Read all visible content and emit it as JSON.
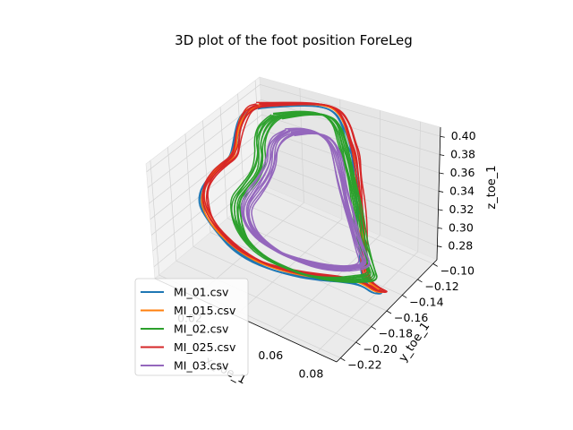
{
  "chart_data": {
    "type": "line",
    "projection": "3d",
    "title": "3D plot of the foot position ForeLeg",
    "xlabel": "x_toe_1",
    "ylabel": "y_toe_1",
    "zlabel": "z_toe_1",
    "xlim": [
      0.0,
      0.09
    ],
    "ylim": [
      -0.225,
      -0.095
    ],
    "zlim": [
      0.265,
      0.41
    ],
    "x_ticks": [
      "0.02",
      "0.06",
      "0.08"
    ],
    "y_ticks": [
      "−0.10",
      "−0.12",
      "−0.14",
      "−0.16",
      "−0.18",
      "−0.20",
      "−0.22"
    ],
    "z_ticks": [
      "0.28",
      "0.30",
      "0.32",
      "0.34",
      "0.36",
      "0.38",
      "0.40"
    ],
    "grid": true,
    "legend_position": "lower-left",
    "series": [
      {
        "name": "MI_01.csv",
        "color": "#1f77b4"
      },
      {
        "name": "MI_015.csv",
        "color": "#ff7f0e"
      },
      {
        "name": "MI_02.csv",
        "color": "#2ca02c"
      },
      {
        "name": "MI_025.csv",
        "color": "#d62728"
      },
      {
        "name": "MI_03.csv",
        "color": "#9467bd"
      }
    ]
  }
}
